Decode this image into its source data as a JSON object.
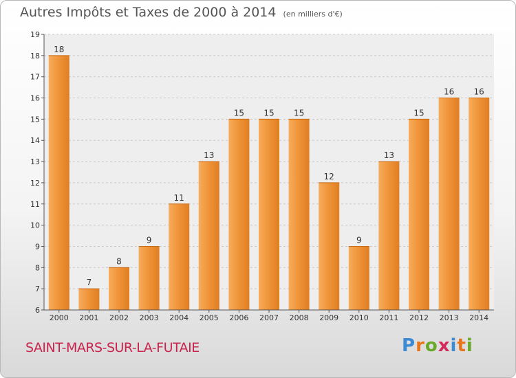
{
  "header": {
    "title": "Autres Impôts et Taxes de 2000 à 2014",
    "subtitle": "(en milliers d'€)"
  },
  "footer": {
    "commune": "SAINT-MARS-SUR-LA-FUTAIE",
    "brand_letters": [
      "P",
      "r",
      "o",
      "x",
      "i",
      "t",
      "i"
    ],
    "brand_colors": [
      "#3a8ad4",
      "#e8741a",
      "#6aa82c",
      "#d42a5a",
      "#3a8ad4",
      "#e8741a",
      "#6aa82c"
    ]
  },
  "chart_data": {
    "type": "bar",
    "title": "Autres Impôts et Taxes de 2000 à 2014",
    "subtitle": "(en milliers d'€)",
    "xlabel": "",
    "ylabel": "",
    "categories": [
      "2000",
      "2001",
      "2002",
      "2003",
      "2004",
      "2005",
      "2006",
      "2007",
      "2008",
      "2009",
      "2010",
      "2011",
      "2012",
      "2013",
      "2014"
    ],
    "values": [
      18,
      7,
      8,
      9,
      11,
      13,
      15,
      15,
      15,
      12,
      9,
      13,
      15,
      16,
      16
    ],
    "ylim": [
      6,
      19
    ],
    "yticks": [
      6,
      7,
      8,
      9,
      10,
      11,
      12,
      13,
      14,
      15,
      16,
      17,
      18,
      19
    ],
    "grid": true,
    "bar_color": "#f0953a",
    "bar_color_light": "#f7ac5c",
    "bar_color_dark": "#e07e22",
    "grid_color": "#c8c8c8",
    "legend": "none"
  }
}
